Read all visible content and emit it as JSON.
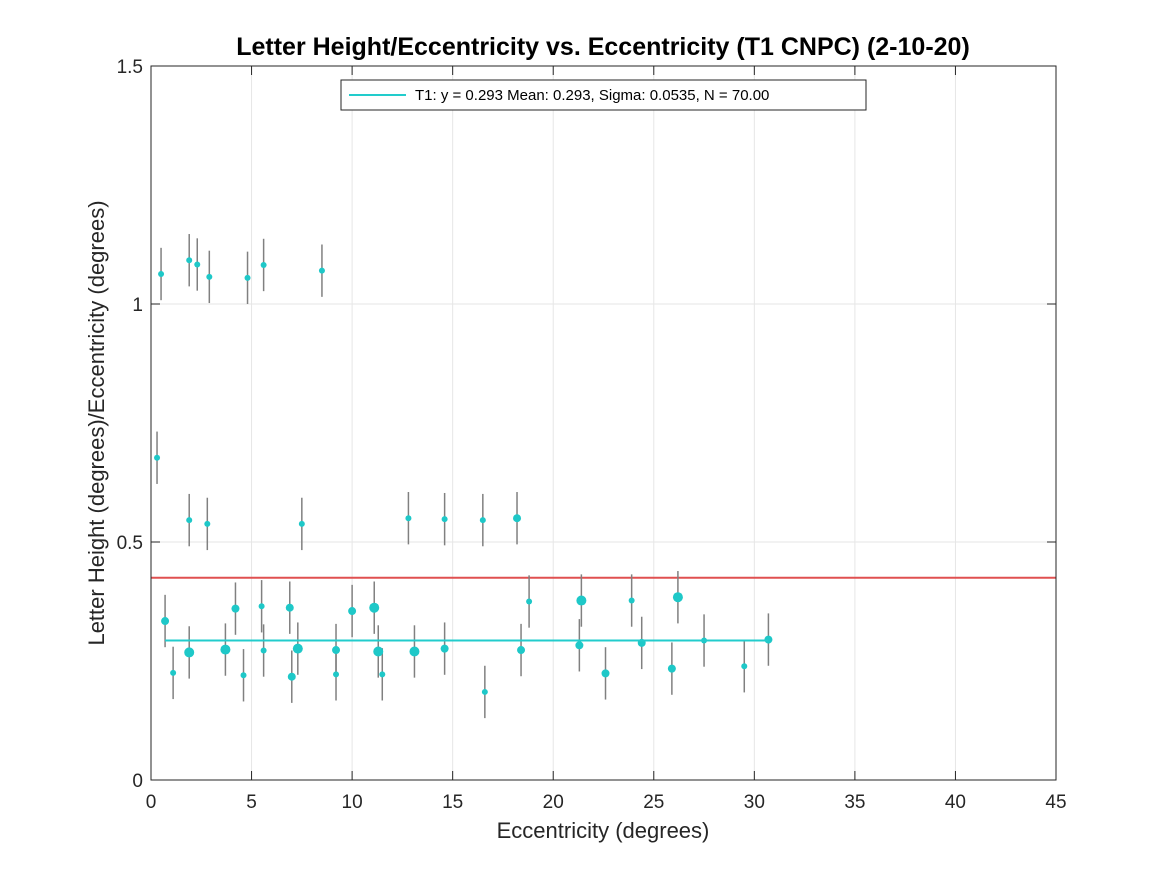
{
  "chart_data": {
    "type": "scatter",
    "title": "Letter Height/Eccentricity vs. Eccentricity (T1 CNPC) (2-10-20)",
    "xlabel": "Eccentricity (degrees)",
    "ylabel": "Letter Height (degrees)/Eccentricity (degrees)",
    "xlim": [
      0,
      45
    ],
    "ylim": [
      0,
      1.5
    ],
    "xticks": [
      0,
      5,
      10,
      15,
      20,
      25,
      30,
      35,
      40,
      45
    ],
    "yticks": [
      0,
      0.5,
      1,
      1.5
    ],
    "ytick_labels": [
      "0",
      "0.5",
      "1",
      "1.5"
    ],
    "grid": true,
    "legend": {
      "location": "top-center",
      "entries": [
        "T1: y = 0.293 Mean: 0.293, Sigma: 0.0535, N = 70.00"
      ]
    },
    "colors": {
      "points": "#1ec8c8",
      "fit": "#22cccc",
      "reference": "#e05050",
      "errorbar": "#808080",
      "grid": "#e6e6e6"
    },
    "reference_line": {
      "y": 0.425,
      "color": "#e05050"
    },
    "fit_line": {
      "name": "T1",
      "y": 0.293,
      "x_range": [
        0.7,
        30.7
      ]
    },
    "points": [
      {
        "x": 0.5,
        "y": 1.063,
        "err": 0.055,
        "size": "small"
      },
      {
        "x": 1.9,
        "y": 1.092,
        "err": 0.055,
        "size": "small"
      },
      {
        "x": 2.3,
        "y": 1.083,
        "err": 0.055,
        "size": "small"
      },
      {
        "x": 2.9,
        "y": 1.057,
        "err": 0.055,
        "size": "small"
      },
      {
        "x": 4.8,
        "y": 1.055,
        "err": 0.055,
        "size": "small"
      },
      {
        "x": 5.6,
        "y": 1.082,
        "err": 0.055,
        "size": "small"
      },
      {
        "x": 8.5,
        "y": 1.07,
        "err": 0.055,
        "size": "small"
      },
      {
        "x": 0.3,
        "y": 0.677,
        "err": 0.055,
        "size": "small"
      },
      {
        "x": 1.9,
        "y": 0.546,
        "err": 0.055,
        "size": "small"
      },
      {
        "x": 2.8,
        "y": 0.538,
        "err": 0.055,
        "size": "small"
      },
      {
        "x": 7.5,
        "y": 0.538,
        "err": 0.055,
        "size": "small"
      },
      {
        "x": 12.8,
        "y": 0.55,
        "err": 0.055,
        "size": "small"
      },
      {
        "x": 14.6,
        "y": 0.548,
        "err": 0.055,
        "size": "small"
      },
      {
        "x": 16.5,
        "y": 0.546,
        "err": 0.055,
        "size": "small"
      },
      {
        "x": 18.2,
        "y": 0.55,
        "err": 0.055,
        "size": "medium"
      },
      {
        "x": 0.7,
        "y": 0.334,
        "err": 0.055,
        "size": "medium"
      },
      {
        "x": 1.1,
        "y": 0.225,
        "err": 0.055,
        "size": "small"
      },
      {
        "x": 1.9,
        "y": 0.268,
        "err": 0.055,
        "size": "large"
      },
      {
        "x": 3.7,
        "y": 0.274,
        "err": 0.055,
        "size": "large"
      },
      {
        "x": 4.2,
        "y": 0.36,
        "err": 0.055,
        "size": "medium"
      },
      {
        "x": 4.6,
        "y": 0.22,
        "err": 0.055,
        "size": "small"
      },
      {
        "x": 5.5,
        "y": 0.365,
        "err": 0.055,
        "size": "small"
      },
      {
        "x": 5.6,
        "y": 0.272,
        "err": 0.055,
        "size": "small"
      },
      {
        "x": 6.9,
        "y": 0.362,
        "err": 0.055,
        "size": "medium"
      },
      {
        "x": 7.0,
        "y": 0.217,
        "err": 0.055,
        "size": "medium"
      },
      {
        "x": 7.3,
        "y": 0.276,
        "err": 0.055,
        "size": "large"
      },
      {
        "x": 9.2,
        "y": 0.273,
        "err": 0.055,
        "size": "medium"
      },
      {
        "x": 9.2,
        "y": 0.222,
        "err": 0.055,
        "size": "small"
      },
      {
        "x": 10.0,
        "y": 0.355,
        "err": 0.055,
        "size": "medium"
      },
      {
        "x": 11.1,
        "y": 0.362,
        "err": 0.055,
        "size": "large"
      },
      {
        "x": 11.3,
        "y": 0.27,
        "err": 0.055,
        "size": "large"
      },
      {
        "x": 11.5,
        "y": 0.222,
        "err": 0.055,
        "size": "small"
      },
      {
        "x": 13.1,
        "y": 0.27,
        "err": 0.055,
        "size": "large"
      },
      {
        "x": 14.6,
        "y": 0.276,
        "err": 0.055,
        "size": "medium"
      },
      {
        "x": 16.6,
        "y": 0.185,
        "err": 0.055,
        "size": "small"
      },
      {
        "x": 18.4,
        "y": 0.273,
        "err": 0.055,
        "size": "medium"
      },
      {
        "x": 18.8,
        "y": 0.375,
        "err": 0.055,
        "size": "small"
      },
      {
        "x": 21.3,
        "y": 0.283,
        "err": 0.055,
        "size": "medium"
      },
      {
        "x": 21.4,
        "y": 0.377,
        "err": 0.055,
        "size": "large"
      },
      {
        "x": 22.6,
        "y": 0.224,
        "err": 0.055,
        "size": "medium"
      },
      {
        "x": 23.9,
        "y": 0.377,
        "err": 0.055,
        "size": "small"
      },
      {
        "x": 24.4,
        "y": 0.288,
        "err": 0.055,
        "size": "medium"
      },
      {
        "x": 25.9,
        "y": 0.234,
        "err": 0.055,
        "size": "medium"
      },
      {
        "x": 26.2,
        "y": 0.384,
        "err": 0.055,
        "size": "large"
      },
      {
        "x": 27.5,
        "y": 0.293,
        "err": 0.055,
        "size": "small"
      },
      {
        "x": 29.5,
        "y": 0.239,
        "err": 0.055,
        "size": "small"
      },
      {
        "x": 30.7,
        "y": 0.295,
        "err": 0.055,
        "size": "medium"
      }
    ]
  }
}
